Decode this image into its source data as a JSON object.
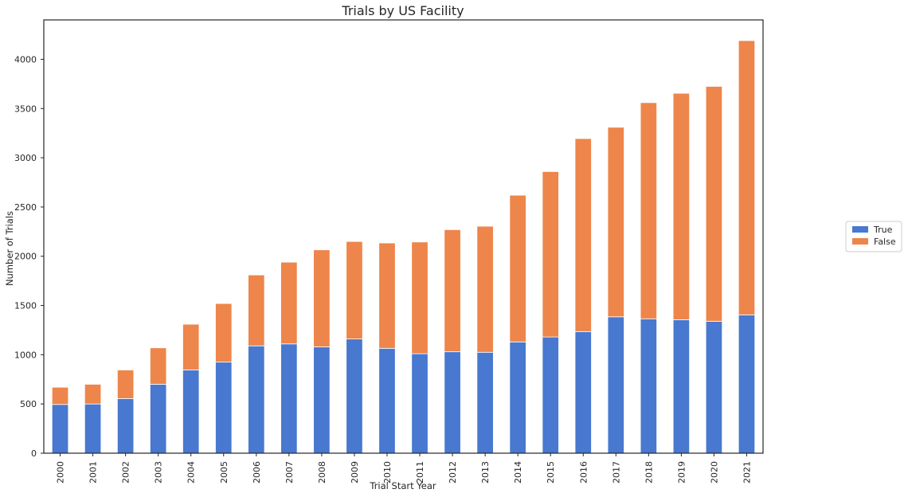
{
  "chart_data": {
    "type": "bar",
    "stacked": true,
    "title": "Trials by US Facility",
    "xlabel": "Trial Start Year",
    "ylabel": "Number of Trials",
    "ylim": [
      0,
      4400
    ],
    "yticks": [
      0,
      500,
      1000,
      1500,
      2000,
      2500,
      3000,
      3500,
      4000
    ],
    "categories": [
      "2000",
      "2001",
      "2002",
      "2003",
      "2004",
      "2005",
      "2006",
      "2007",
      "2008",
      "2009",
      "2010",
      "2011",
      "2012",
      "2013",
      "2014",
      "2015",
      "2016",
      "2017",
      "2018",
      "2019",
      "2020",
      "2021"
    ],
    "series": [
      {
        "name": "True",
        "color": "#4878cf",
        "values": [
          495,
          500,
          555,
          700,
          845,
          925,
          1090,
          1110,
          1080,
          1160,
          1065,
          1010,
          1030,
          1025,
          1130,
          1180,
          1235,
          1385,
          1365,
          1355,
          1340,
          1405
        ]
      },
      {
        "name": "False",
        "color": "#ee854a",
        "values": [
          175,
          200,
          290,
          370,
          465,
          595,
          720,
          830,
          985,
          990,
          1070,
          1135,
          1240,
          1280,
          1490,
          1680,
          1960,
          1925,
          2195,
          2300,
          2385,
          2785
        ]
      }
    ],
    "grid": false,
    "legend_position": "right-center"
  }
}
